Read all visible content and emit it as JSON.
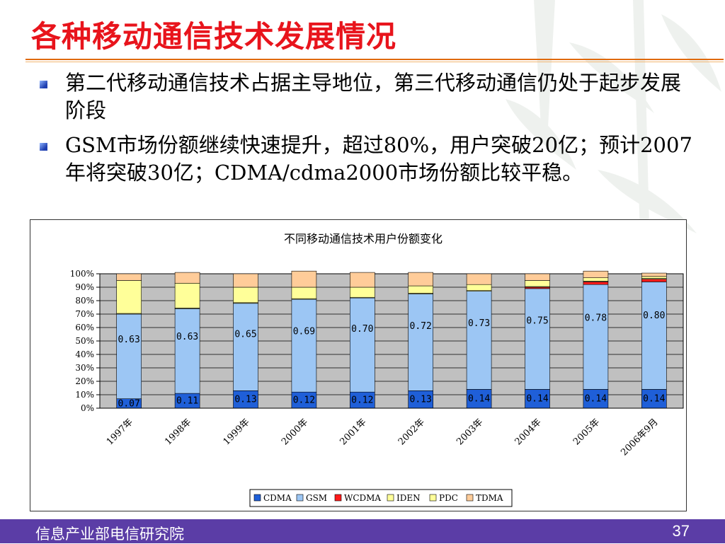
{
  "slide": {
    "title": "各种移动通信技术发展情况",
    "bullets": [
      "第二代移动通信技术占据主导地位，第三代移动通信仍处于起步发展阶段",
      "GSM市场份额继续快速提升，超过80%，用户突破20亿；预计2007年将突破30亿；CDMA/cdma2000市场份额比较平稳。"
    ],
    "footer_org": "信息产业部电信研究院",
    "page_number": "37",
    "colors": {
      "title": "#e8141c",
      "footer_bg": "#5b3da6",
      "rule": "#e06a0e"
    }
  },
  "chart_data": {
    "type": "bar",
    "stacked": true,
    "title": "不同移动通信技术用户份额变化",
    "categories": [
      "1997年",
      "1998年",
      "1999年",
      "2000年",
      "2001年",
      "2002年",
      "2003年",
      "2004年",
      "2005年",
      "2006年9月"
    ],
    "series": [
      {
        "name": "CDMA",
        "color": "#1f5fd8",
        "values": [
          0.07,
          0.11,
          0.13,
          0.12,
          0.12,
          0.13,
          0.14,
          0.14,
          0.14,
          0.14
        ],
        "labels": [
          "0.07",
          "0.11",
          "0.13",
          "0.12",
          "0.12",
          "0.13",
          "0.14",
          "0.14",
          "0.14",
          "0.14"
        ]
      },
      {
        "name": "GSM",
        "color": "#9cc6f4",
        "values": [
          0.63,
          0.63,
          0.65,
          0.69,
          0.7,
          0.72,
          0.73,
          0.75,
          0.78,
          0.8
        ],
        "labels": [
          "0.63",
          "0.63",
          "0.65",
          "0.69",
          "0.70",
          "0.72",
          "0.73",
          "0.75",
          "0.78",
          "0.80"
        ]
      },
      {
        "name": "WCDMA",
        "color": "#ff1a1a",
        "values": [
          0,
          0,
          0,
          0,
          0,
          0,
          0,
          0.01,
          0.02,
          0.02
        ]
      },
      {
        "name": "IDEN",
        "color": "#ffff99",
        "values": [
          0.005,
          0.005,
          0.005,
          0.005,
          0.005,
          0.005,
          0.005,
          0.005,
          0.005,
          0.005
        ]
      },
      {
        "name": "PDC",
        "color": "#ffff99",
        "values": [
          0.245,
          0.185,
          0.115,
          0.085,
          0.075,
          0.055,
          0.045,
          0.045,
          0.025,
          0.015
        ]
      },
      {
        "name": "TDMA",
        "color": "#ffcc99",
        "values": [
          0.05,
          0.08,
          0.1,
          0.12,
          0.11,
          0.1,
          0.08,
          0.05,
          0.05,
          0.025
        ]
      }
    ],
    "ylim": [
      0,
      1
    ],
    "yticks": [
      "0%",
      "10%",
      "20%",
      "30%",
      "40%",
      "50%",
      "60%",
      "70%",
      "80%",
      "90%",
      "100%"
    ],
    "grid": true,
    "legend": "bottom",
    "plot_background": "#c0c0c0"
  }
}
